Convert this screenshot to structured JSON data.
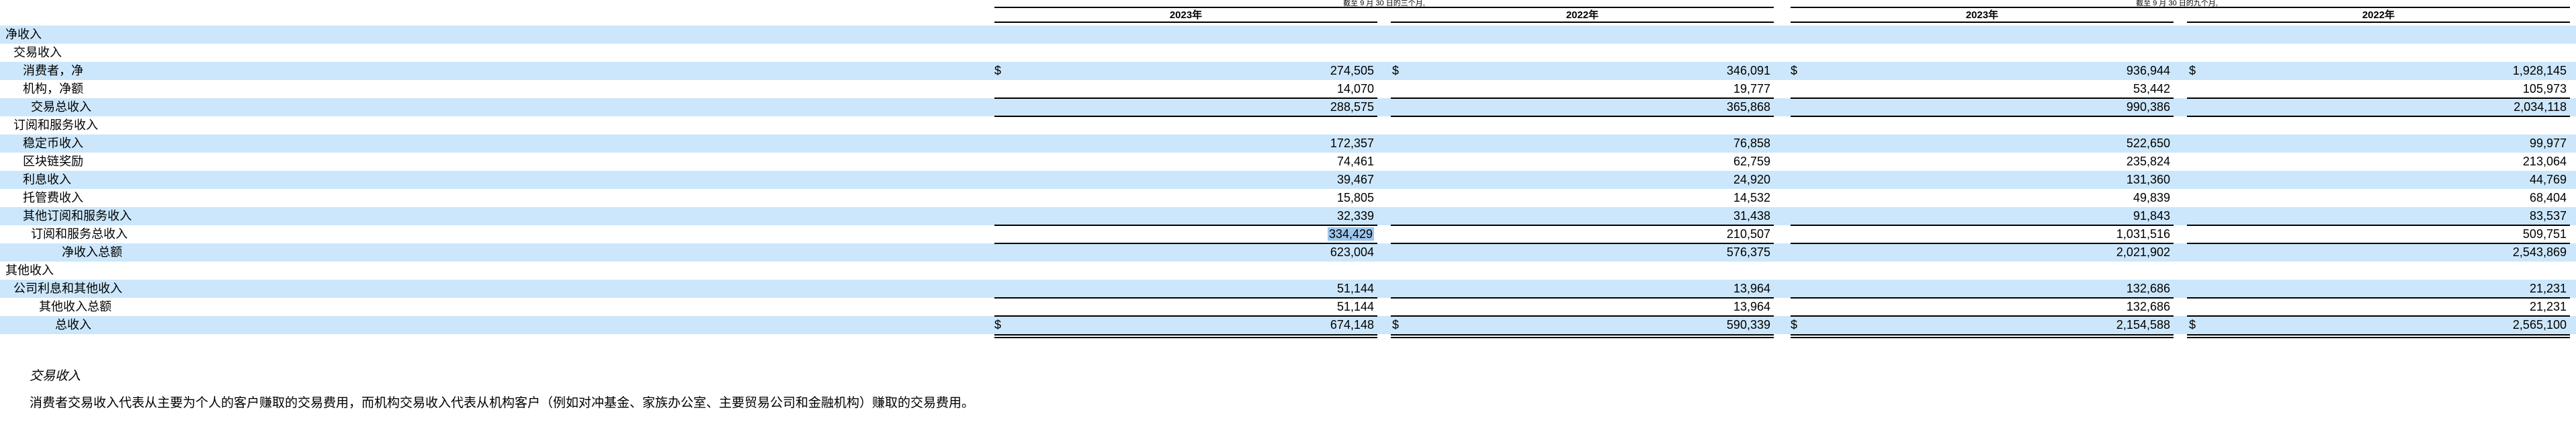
{
  "header": {
    "period_label_a": "截至 9 月 30 日的三个月,",
    "period_label_b": "截至 9 月 30 日的九个月,",
    "columns": [
      "2023年",
      "2022年",
      "2023年",
      "2022年"
    ]
  },
  "rows": [
    {
      "label": "净收入",
      "values": [
        "",
        "",
        "",
        ""
      ],
      "dollar": false
    },
    {
      "label": "交易收入",
      "values": [
        "",
        "",
        "",
        ""
      ],
      "dollar": false
    },
    {
      "label": "消费者，净",
      "values": [
        "274,505",
        "346,091",
        "936,944",
        "1,928,145"
      ],
      "dollar": true
    },
    {
      "label": "机构，净额",
      "values": [
        "14,070",
        "19,777",
        "53,442",
        "105,973"
      ],
      "dollar": false
    },
    {
      "label": "交易总收入",
      "values": [
        "288,575",
        "365,868",
        "990,386",
        "2,034,118"
      ],
      "dollar": false
    },
    {
      "label": "订阅和服务收入",
      "values": [
        "",
        "",
        "",
        ""
      ],
      "dollar": false
    },
    {
      "label": "稳定币收入",
      "values": [
        "172,357",
        "76,858",
        "522,650",
        "99,977"
      ],
      "dollar": false
    },
    {
      "label": "区块链奖励",
      "values": [
        "74,461",
        "62,759",
        "235,824",
        "213,064"
      ],
      "dollar": false
    },
    {
      "label": "利息收入",
      "values": [
        "39,467",
        "24,920",
        "131,360",
        "44,769"
      ],
      "dollar": false
    },
    {
      "label": "托管费收入",
      "values": [
        "15,805",
        "14,532",
        "49,839",
        "68,404"
      ],
      "dollar": false
    },
    {
      "label": "其他订阅和服务收入",
      "values": [
        "32,339",
        "31,438",
        "91,843",
        "83,537"
      ],
      "dollar": false
    },
    {
      "label": "订阅和服务总收入",
      "values": [
        "334,429",
        "210,507",
        "1,031,516",
        "509,751"
      ],
      "dollar": false
    },
    {
      "label": "净收入总额",
      "values": [
        "623,004",
        "576,375",
        "2,021,902",
        "2,543,869"
      ],
      "dollar": false
    },
    {
      "label": "其他收入",
      "values": [
        "",
        "",
        "",
        ""
      ],
      "dollar": false
    },
    {
      "label": "公司利息和其他收入",
      "values": [
        "51,144",
        "13,964",
        "132,686",
        "21,231"
      ],
      "dollar": false
    },
    {
      "label": "其他收入总额",
      "values": [
        "51,144",
        "13,964",
        "132,686",
        "21,231"
      ],
      "dollar": false
    },
    {
      "label": "总收入",
      "values": [
        "674,148",
        "590,339",
        "2,154,588",
        "2,565,100"
      ],
      "dollar": true
    }
  ],
  "dollar_sign": "$",
  "notes": {
    "title": "交易收入",
    "body": "消费者交易收入代表从主要为个人的客户赚取的交易费用，而机构交易收入代表从机构客户（例如对冲基金、家族办公室、主要贸易公司和金融机构）赚取的交易费用。"
  }
}
